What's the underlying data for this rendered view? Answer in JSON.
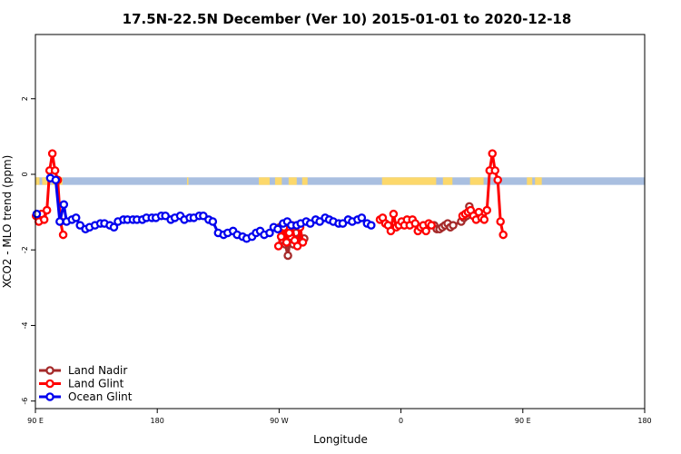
{
  "chart_data": {
    "type": "line",
    "title": "17.5N-22.5N December (Ver 10)   2015-01-01 to 2020-12-18",
    "xlabel": "Longitude",
    "ylabel": "XCO2 - MLO trend (ppm)",
    "xlim": [
      90,
      450
    ],
    "ylim": [
      -6.2,
      3.7
    ],
    "x_ticks": [
      {
        "value": 90,
        "label": "90 E"
      },
      {
        "value": 180,
        "label": "180"
      },
      {
        "value": 270,
        "label": "90 W"
      },
      {
        "value": 360,
        "label": "0"
      },
      {
        "value": 450,
        "label": "90 E"
      },
      {
        "value": 540,
        "label": "180"
      }
    ],
    "y_ticks": [
      {
        "value": 2,
        "label": "2"
      },
      {
        "value": 0,
        "label": "0"
      },
      {
        "value": -2,
        "label": "-2"
      },
      {
        "value": -4,
        "label": "-4"
      },
      {
        "value": -6,
        "label": "-6"
      }
    ],
    "land_strip": {
      "y_range": [
        -0.28,
        -0.08
      ],
      "ocean_color": "#a9bfe0",
      "land_color": "#fcd86b",
      "land_segments": [
        [
          90,
          93
        ],
        [
          95,
          99
        ],
        [
          102,
          110
        ],
        [
          202,
          203
        ],
        [
          255,
          263
        ],
        [
          267,
          272
        ],
        [
          277,
          283
        ],
        [
          287,
          291
        ],
        [
          346,
          386
        ],
        [
          391,
          398
        ],
        [
          411,
          421
        ],
        [
          453,
          457
        ],
        [
          459,
          464
        ]
      ]
    },
    "legend": {
      "position": "bottom-left"
    },
    "series": [
      {
        "name": "Land Nadir",
        "color": "#a52a2a",
        "points": [
          [
            270.5,
            -1.4
          ],
          [
            272.5,
            -1.75
          ],
          [
            274.5,
            -1.85
          ],
          [
            276.5,
            -2.15
          ],
          [
            278.5,
            -1.65
          ],
          [
            280.5,
            -1.85
          ],
          [
            282.5,
            -1.55
          ],
          [
            284.5,
            -1.7
          ],
          [
            286.5,
            -1.75
          ],
          [
            288.5,
            -1.7
          ],
          [
            384.5,
            -1.35
          ],
          [
            386.5,
            -1.45
          ],
          [
            388.5,
            -1.45
          ],
          [
            390.5,
            -1.4
          ],
          [
            392.5,
            -1.35
          ],
          [
            394.5,
            -1.3
          ],
          [
            396.5,
            -1.4
          ],
          [
            398.5,
            -1.35
          ],
          [
            404.5,
            -1.25
          ],
          [
            406.5,
            -1.15
          ],
          [
            408.5,
            -1.1
          ],
          [
            410.5,
            -0.85
          ]
        ]
      },
      {
        "name": "Land Glint",
        "color": "#ff0000",
        "points": [
          [
            90.5,
            -1.1
          ],
          [
            92.5,
            -1.25
          ],
          [
            94.5,
            -1.05
          ],
          [
            96.5,
            -1.2
          ],
          [
            98.5,
            -0.95
          ],
          [
            100.5,
            0.1
          ],
          [
            102.5,
            0.55
          ],
          [
            104.5,
            0.1
          ],
          [
            106.5,
            -0.15
          ],
          [
            108.5,
            -1.25
          ],
          [
            110.5,
            -1.6
          ],
          [
            269.5,
            -1.9
          ],
          [
            271.5,
            -1.65
          ],
          [
            273.5,
            -1.4
          ],
          [
            275.5,
            -1.8
          ],
          [
            277.5,
            -1.55
          ],
          [
            279.5,
            -1.35
          ],
          [
            281.5,
            -1.75
          ],
          [
            283.5,
            -1.9
          ],
          [
            285.5,
            -1.4
          ],
          [
            287.5,
            -1.8
          ],
          [
            344.5,
            -1.2
          ],
          [
            346.5,
            -1.15
          ],
          [
            348.5,
            -1.3
          ],
          [
            350.5,
            -1.35
          ],
          [
            352.5,
            -1.5
          ],
          [
            354.5,
            -1.05
          ],
          [
            356.5,
            -1.4
          ],
          [
            358.5,
            -1.35
          ],
          [
            360.5,
            -1.25
          ],
          [
            362.5,
            -1.35
          ],
          [
            364.5,
            -1.2
          ],
          [
            366.5,
            -1.35
          ],
          [
            368.5,
            -1.2
          ],
          [
            370.5,
            -1.3
          ],
          [
            372.5,
            -1.5
          ],
          [
            374.5,
            -1.4
          ],
          [
            376.5,
            -1.35
          ],
          [
            378.5,
            -1.5
          ],
          [
            380.5,
            -1.3
          ],
          [
            382.5,
            -1.35
          ],
          [
            405.5,
            -1.1
          ],
          [
            407.5,
            -1.05
          ],
          [
            409.5,
            -1.0
          ],
          [
            411.5,
            -0.95
          ],
          [
            413.5,
            -1.1
          ],
          [
            415.5,
            -1.2
          ],
          [
            417.5,
            -1.0
          ],
          [
            419.5,
            -1.15
          ],
          [
            421.5,
            -1.2
          ],
          [
            423.5,
            -0.95
          ],
          [
            425.5,
            0.1
          ],
          [
            427.5,
            0.55
          ],
          [
            429.5,
            0.1
          ],
          [
            431.5,
            -0.15
          ],
          [
            433.5,
            -1.25
          ],
          [
            435.5,
            -1.6
          ]
        ]
      },
      {
        "name": "Ocean Glint",
        "color": "#0000ee",
        "points": [
          [
            91,
            -1.05
          ],
          [
            101,
            -0.1
          ],
          [
            105,
            -0.15
          ],
          [
            108,
            -1.25
          ],
          [
            111,
            -0.8
          ],
          [
            113,
            -1.25
          ],
          [
            117,
            -1.2
          ],
          [
            120,
            -1.15
          ],
          [
            123,
            -1.35
          ],
          [
            127,
            -1.45
          ],
          [
            130,
            -1.4
          ],
          [
            134,
            -1.35
          ],
          [
            138,
            -1.3
          ],
          [
            141,
            -1.3
          ],
          [
            145,
            -1.35
          ],
          [
            148,
            -1.4
          ],
          [
            151,
            -1.25
          ],
          [
            155,
            -1.2
          ],
          [
            158,
            -1.2
          ],
          [
            162,
            -1.2
          ],
          [
            165,
            -1.2
          ],
          [
            169,
            -1.2
          ],
          [
            172,
            -1.15
          ],
          [
            176,
            -1.15
          ],
          [
            179,
            -1.15
          ],
          [
            183,
            -1.1
          ],
          [
            186,
            -1.1
          ],
          [
            190,
            -1.2
          ],
          [
            193,
            -1.15
          ],
          [
            197,
            -1.1
          ],
          [
            200,
            -1.2
          ],
          [
            204,
            -1.15
          ],
          [
            207,
            -1.15
          ],
          [
            211,
            -1.1
          ],
          [
            214,
            -1.1
          ],
          [
            218,
            -1.2
          ],
          [
            221,
            -1.25
          ],
          [
            225,
            -1.55
          ],
          [
            229,
            -1.6
          ],
          [
            232,
            -1.55
          ],
          [
            236,
            -1.5
          ],
          [
            239,
            -1.6
          ],
          [
            243,
            -1.65
          ],
          [
            246,
            -1.7
          ],
          [
            250,
            -1.65
          ],
          [
            253,
            -1.55
          ],
          [
            256,
            -1.5
          ],
          [
            259,
            -1.6
          ],
          [
            263,
            -1.55
          ],
          [
            266,
            -1.4
          ],
          [
            269,
            -1.45
          ],
          [
            273,
            -1.3
          ],
          [
            276,
            -1.25
          ],
          [
            279,
            -1.35
          ],
          [
            283,
            -1.35
          ],
          [
            286,
            -1.3
          ],
          [
            290,
            -1.25
          ],
          [
            293,
            -1.3
          ],
          [
            297,
            -1.2
          ],
          [
            300,
            -1.25
          ],
          [
            304,
            -1.15
          ],
          [
            307,
            -1.2
          ],
          [
            310,
            -1.25
          ],
          [
            314,
            -1.3
          ],
          [
            317,
            -1.3
          ],
          [
            321,
            -1.2
          ],
          [
            324,
            -1.25
          ],
          [
            328,
            -1.2
          ],
          [
            331,
            -1.15
          ],
          [
            335,
            -1.3
          ],
          [
            338,
            -1.35
          ]
        ]
      }
    ]
  }
}
